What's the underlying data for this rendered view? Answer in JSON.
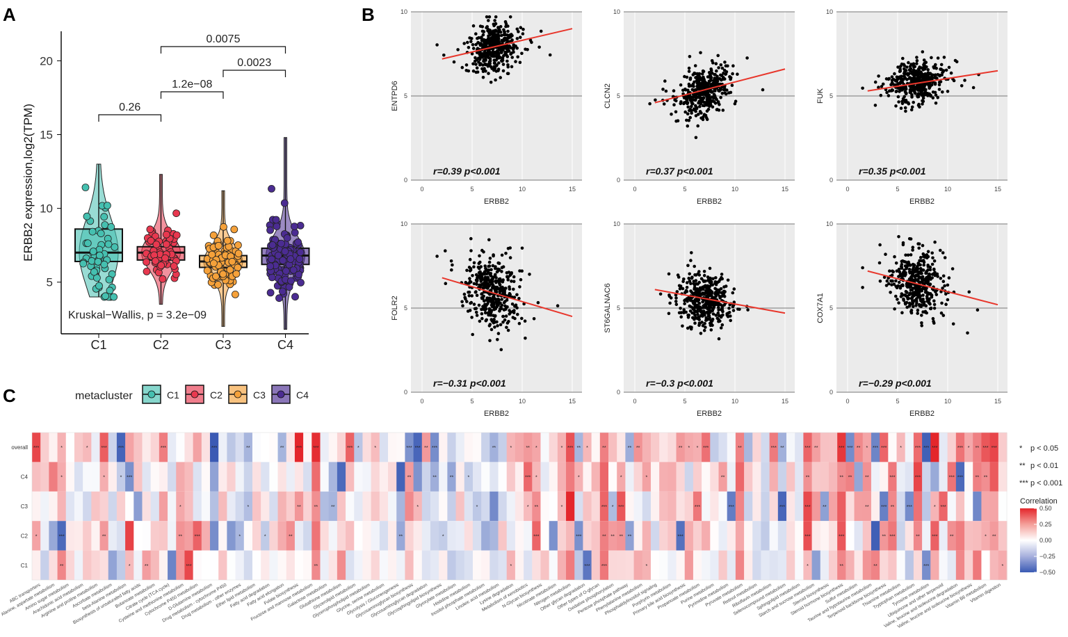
{
  "panel_labels": {
    "a": "A",
    "b": "B",
    "c": "C"
  },
  "chart_data": [
    {
      "panel": "A",
      "type": "box",
      "ylabel": "ERBB2 expression,log2(TPM)",
      "ylim": [
        1.5,
        22
      ],
      "yticks": [
        5,
        10,
        15,
        20
      ],
      "categories": [
        "C1",
        "C2",
        "C3",
        "C4"
      ],
      "colors": [
        "#45c0b0",
        "#e8384f",
        "#f5a13a",
        "#4b2c92"
      ],
      "series": [
        {
          "name": "C1",
          "q1": 6.4,
          "median": 7.0,
          "q3": 8.6,
          "min": 4.0,
          "max": 13.0
        },
        {
          "name": "C2",
          "q1": 6.5,
          "median": 7.0,
          "q3": 7.4,
          "min": 3.5,
          "max": 12.3
        },
        {
          "name": "C3",
          "q1": 6.0,
          "median": 6.4,
          "q3": 6.8,
          "min": 2.0,
          "max": 11.2
        },
        {
          "name": "C4",
          "q1": 6.2,
          "median": 6.8,
          "q3": 7.3,
          "min": 1.8,
          "max": 14.8
        }
      ],
      "comparisons": [
        {
          "groups": [
            "C1",
            "C2"
          ],
          "p": "0.26"
        },
        {
          "groups": [
            "C2",
            "C3"
          ],
          "p": "1.2e−08"
        },
        {
          "groups": [
            "C3",
            "C4"
          ],
          "p": "0.0023"
        },
        {
          "groups": [
            "C2",
            "C4"
          ],
          "p": "0.0075"
        }
      ],
      "test_label": "Kruskal−Wallis, p = 3.2e−09",
      "legend": {
        "title": "metacluster",
        "items": [
          "C1",
          "C2",
          "C3",
          "C4"
        ]
      }
    },
    {
      "panel": "B",
      "type": "scatter",
      "xlabel": "ERBB2",
      "xlim": [
        0,
        15
      ],
      "xticks": [
        0,
        5,
        10,
        15
      ],
      "ylim": [
        0,
        10
      ],
      "yticks": [
        0,
        5,
        10
      ],
      "plots": [
        {
          "gene": "ENTPD6",
          "stat": "r=0.39 p<0.001",
          "fit": [
            [
              2,
              7.2
            ],
            [
              15,
              9.0
            ]
          ],
          "cx": 7,
          "cy": 7.9,
          "sx": 1.2,
          "sy": 0.7
        },
        {
          "gene": "CLCN2",
          "stat": "r=0.37 p<0.001",
          "fit": [
            [
              2,
              4.6
            ],
            [
              15,
              6.6
            ]
          ],
          "cx": 7,
          "cy": 5.3,
          "sx": 1.2,
          "sy": 0.7
        },
        {
          "gene": "FUK",
          "stat": "r=0.35 p<0.001",
          "fit": [
            [
              2,
              5.3
            ],
            [
              15,
              6.5
            ]
          ],
          "cx": 7,
          "cy": 5.8,
          "sx": 1.2,
          "sy": 0.6
        },
        {
          "gene": "FOLR2",
          "stat": "r=−0.31 p<0.001",
          "fit": [
            [
              2,
              6.8
            ],
            [
              15,
              4.5
            ]
          ],
          "cx": 7,
          "cy": 6.0,
          "sx": 1.2,
          "sy": 1.1
        },
        {
          "gene": "ST6GALNAC6",
          "stat": "r=−0.3 p<0.001",
          "fit": [
            [
              2,
              6.1
            ],
            [
              15,
              4.7
            ]
          ],
          "cx": 7,
          "cy": 5.5,
          "sx": 1.2,
          "sy": 0.8
        },
        {
          "gene": "COX7A1",
          "stat": "r=−0.29 p<0.001",
          "fit": [
            [
              2,
              7.2
            ],
            [
              15,
              5.2
            ]
          ],
          "cx": 7,
          "cy": 6.5,
          "sx": 1.2,
          "sy": 0.9
        }
      ]
    },
    {
      "panel": "C",
      "type": "heatmap",
      "rows": [
        "overall",
        "C4",
        "C3",
        "C2",
        "C1"
      ],
      "n_columns": 115,
      "scale_title": "Correlation",
      "scale_ticks": [
        "0.50",
        "0.25",
        "0.00",
        "−0.25",
        "−0.50"
      ],
      "scale_range": [
        -0.5,
        0.5
      ],
      "significance_legend": [
        {
          "stars": "*",
          "label": "p < 0.05"
        },
        {
          "stars": "**",
          "label": "p < 0.01"
        },
        {
          "stars": "***",
          "label": "p < 0.001"
        }
      ]
    }
  ],
  "pathway_labels": [
    "ABC transporters",
    "Alanine, aspartate metabolism",
    "Amino sugar metabolism",
    "Arachidonic acid metabolism",
    "Arginine and proline metabolism",
    "Ascorbate metabolism",
    "beta-Alanine metabolism",
    "Biosynthesis of unsaturated fatty acids",
    "Butanoate metabolism",
    "Citrate cycle (TCA cycle)",
    "Cysteine and methionine metabolism",
    "Cytochrome P450 metabolism",
    "D-Glutamine metabolism",
    "Drug metabolism - cytochrome P450",
    "Drug metabolism - other enzymes",
    "Ether lipid metabolism",
    "Fatty acid degradation",
    "Fatty acid elongation",
    "Folate biosynthesis",
    "Fructose and mannose metabolism",
    "Galactose metabolism",
    "Glutathione metabolism",
    "Glycerolipid metabolism",
    "Glycerophospholipid metabolism",
    "Glycine, serine metabolism",
    "Glycolysis / Gluconeogenesis",
    "Glycosaminoglycan biosynthesis",
    "Glycosaminoglycan degradation",
    "Glycosphingolipid biosynthesis",
    "Glyoxylate metabolism",
    "Histidine metabolism",
    "Inositol phosphate metabolism",
    "Linoleic acid metabolism",
    "Lysine degradation",
    "Metabolism of xenobiotics",
    "N-Glycan biosynthesis",
    "Nicotinate metabolism",
    "Nitrogen metabolism",
    "Other glycan degradation",
    "Other types of O-glycan",
    "Oxidative phosphorylation",
    "Pentose phosphate pathway",
    "Phenylalanine metabolism",
    "Phosphatidylinositol signaling",
    "Porphyrin metabolism",
    "Primary bile acid biosynthesis",
    "Propanoate metabolism",
    "Purine metabolism",
    "Pyrimidine metabolism",
    "Pyruvate metabolism",
    "Retinol metabolism",
    "Riboflavin metabolism",
    "Selenocompound metabolism",
    "Sphingolipid metabolism",
    "Starch and sucrose metabolism",
    "Steroid biosynthesis",
    "Steroid hormone biosynthesis",
    "Sulfur metabolism",
    "Taurine and hypotaurine metabolism",
    "Terpenoid backbone biosynthesis",
    "Thiamine metabolism",
    "Tryptophan metabolism",
    "Tyrosine metabolism",
    "Ubiquinone and other terpenoid",
    "Valine, leucine and isoleucine degradation",
    "Valine, leucine and isoleucine biosynthesis",
    "Vitamin B6 metabolism",
    "Vitamin digestion"
  ]
}
